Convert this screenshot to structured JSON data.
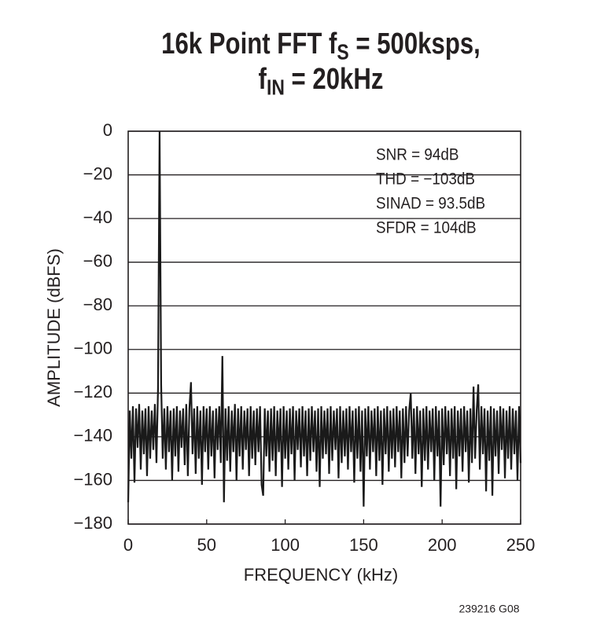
{
  "chart_data": {
    "type": "line",
    "title_lines": [
      [
        {
          "text": "16k Point FFT f"
        },
        {
          "text": "S",
          "subscript": true
        },
        {
          "text": " = 500ksps,"
        }
      ],
      [
        {
          "text": "f"
        },
        {
          "text": "IN",
          "subscript": true
        },
        {
          "text": " = 20kHz"
        }
      ]
    ],
    "x_label": "FREQUENCY (kHz)",
    "y_label": "AMPLITUDE (dBFS)",
    "annotations": [
      "SNR = 94dB",
      "THD = −103dB",
      "SINAD = 93.5dB",
      "SFDR = 104dB"
    ],
    "footnote": "239216 G08",
    "xlim": [
      0,
      250
    ],
    "xticks": [
      0,
      50,
      100,
      150,
      200,
      250
    ],
    "ylim": [
      -180,
      0
    ],
    "yticks": [
      {
        "value": -180,
        "label": "−180"
      },
      {
        "value": -160,
        "label": "−160"
      },
      {
        "value": -140,
        "label": "−140"
      },
      {
        "value": -120,
        "label": "−120"
      },
      {
        "value": -100,
        "label": "−100"
      },
      {
        "value": -80,
        "label": "−80"
      },
      {
        "value": -60,
        "label": "−60"
      },
      {
        "value": -40,
        "label": "−40"
      },
      {
        "value": -20,
        "label": "−20"
      },
      0
    ],
    "grid": true,
    "color": "#1a1a1a",
    "x": [
      0,
      1,
      2,
      3,
      4,
      5,
      6,
      7,
      8,
      9,
      10,
      11,
      12,
      13,
      14,
      15,
      16,
      17,
      18,
      19,
      20,
      21,
      22,
      23,
      24,
      25,
      26,
      27,
      28,
      29,
      30,
      31,
      32,
      33,
      34,
      35,
      36,
      37,
      38,
      39,
      40,
      41,
      42,
      43,
      44,
      45,
      46,
      47,
      48,
      49,
      50,
      51,
      52,
      53,
      54,
      55,
      56,
      57,
      58,
      59,
      60,
      61,
      62,
      63,
      64,
      65,
      66,
      67,
      68,
      69,
      70,
      71,
      72,
      73,
      74,
      75,
      76,
      77,
      78,
      79,
      80,
      81,
      82,
      83,
      84,
      85,
      86,
      87,
      88,
      89,
      90,
      91,
      92,
      93,
      94,
      95,
      96,
      97,
      98,
      99,
      100,
      101,
      102,
      103,
      104,
      105,
      106,
      107,
      108,
      109,
      110,
      111,
      112,
      113,
      114,
      115,
      116,
      117,
      118,
      119,
      120,
      121,
      122,
      123,
      124,
      125,
      126,
      127,
      128,
      129,
      130,
      131,
      132,
      133,
      134,
      135,
      136,
      137,
      138,
      139,
      140,
      141,
      142,
      143,
      144,
      145,
      146,
      147,
      148,
      149,
      150,
      151,
      152,
      153,
      154,
      155,
      156,
      157,
      158,
      159,
      160,
      161,
      162,
      163,
      164,
      165,
      166,
      167,
      168,
      169,
      170,
      171,
      172,
      173,
      174,
      175,
      176,
      177,
      178,
      179,
      180,
      181,
      182,
      183,
      184,
      185,
      186,
      187,
      188,
      189,
      190,
      191,
      192,
      193,
      194,
      195,
      196,
      197,
      198,
      199,
      200,
      201,
      202,
      203,
      204,
      205,
      206,
      207,
      208,
      209,
      210,
      211,
      212,
      213,
      214,
      215,
      216,
      217,
      218,
      219,
      220,
      221,
      222,
      223,
      224,
      225,
      226,
      227,
      228,
      229,
      230,
      231,
      232,
      233,
      234,
      235,
      236,
      237,
      238,
      239,
      240,
      241,
      242,
      243,
      244,
      245,
      246,
      247,
      248,
      249,
      250
    ],
    "values": [
      -170,
      -128,
      -150,
      -126,
      -161,
      -127,
      -145,
      -125,
      -155,
      -128,
      -148,
      -127,
      -158,
      -126,
      -150,
      -128,
      -146,
      -125,
      -152,
      -118,
      0,
      -116,
      -150,
      -127,
      -155,
      -126,
      -147,
      -128,
      -160,
      -127,
      -149,
      -126,
      -156,
      -128,
      -145,
      -127,
      -153,
      -125,
      -158,
      -127,
      -115,
      -148,
      -127,
      -157,
      -126,
      -150,
      -128,
      -162,
      -126,
      -147,
      -127,
      -155,
      -126,
      -149,
      -128,
      -159,
      -127,
      -146,
      -126,
      -152,
      -103,
      -170,
      -127,
      -151,
      -126,
      -156,
      -128,
      -147,
      -125,
      -160,
      -127,
      -149,
      -126,
      -155,
      -128,
      -146,
      -127,
      -158,
      -126,
      -150,
      -128,
      -153,
      -127,
      -147,
      -126,
      -162,
      -167,
      -127,
      -149,
      -128,
      -156,
      -127,
      -151,
      -126,
      -158,
      -128,
      -147,
      -127,
      -163,
      -126,
      -150,
      -128,
      -155,
      -127,
      -148,
      -126,
      -160,
      -128,
      -146,
      -127,
      -154,
      -126,
      -149,
      -128,
      -158,
      -127,
      -151,
      -126,
      -147,
      -128,
      -156,
      -127,
      -163,
      -126,
      -150,
      -128,
      -148,
      -127,
      -157,
      -126,
      -151,
      -128,
      -146,
      -127,
      -159,
      -126,
      -152,
      -128,
      -149,
      -127,
      -155,
      -126,
      -147,
      -128,
      -161,
      -127,
      -150,
      -126,
      -156,
      -128,
      -172,
      -127,
      -149,
      -126,
      -155,
      -128,
      -147,
      -127,
      -158,
      -126,
      -151,
      -128,
      -162,
      -127,
      -148,
      -126,
      -156,
      -128,
      -150,
      -127,
      -154,
      -126,
      -147,
      -128,
      -159,
      -127,
      -152,
      -126,
      -149,
      -128,
      -120,
      -150,
      -127,
      -157,
      -126,
      -148,
      -128,
      -163,
      -127,
      -151,
      -126,
      -155,
      -128,
      -147,
      -127,
      -160,
      -126,
      -149,
      -128,
      -172,
      -127,
      -153,
      -126,
      -148,
      -128,
      -158,
      -127,
      -150,
      -126,
      -164,
      -128,
      -149,
      -127,
      -156,
      -126,
      -147,
      -128,
      -161,
      -127,
      -152,
      -117,
      -150,
      -128,
      -116,
      -155,
      -126,
      -148,
      -127,
      -165,
      -128,
      -151,
      -126,
      -167,
      -127,
      -149,
      -128,
      -157,
      -126,
      -146,
      -127,
      -159,
      -128,
      -150,
      -126,
      -155,
      -127,
      -148,
      -128,
      -160,
      -126,
      -152
    ]
  }
}
